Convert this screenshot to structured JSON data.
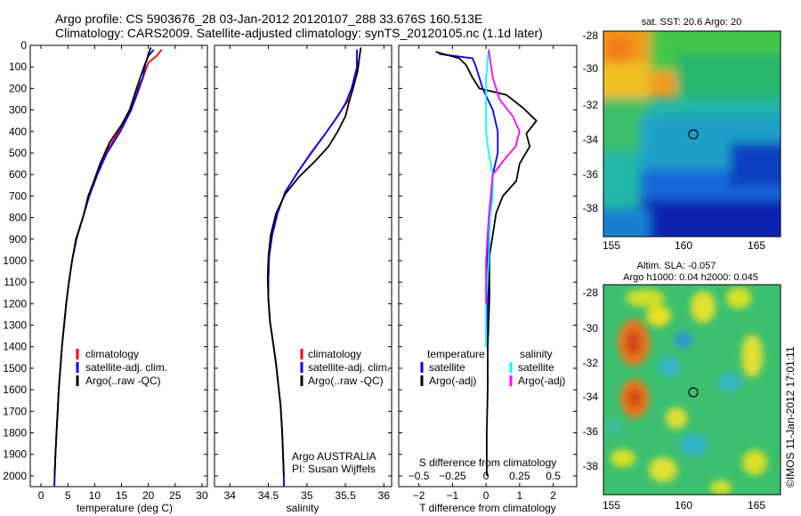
{
  "header": {
    "line1": "Argo profile: CS 5903676_28 03-Jan-2012 20120107_288 33.676S 160.513E",
    "line2": "Climatology: CARS2009. Satellite-adjusted climatology: synTS_20120105.nc (1.1d later)"
  },
  "credit": "©IMOS 11-Jan-2012 17:01:11",
  "colors": {
    "climatology": "#ff0000",
    "satellite": "#0000ff",
    "argo": "#000000",
    "sat_salinity": "#00ffff",
    "argo_salinity": "#ff00ff"
  },
  "chart_data": [
    {
      "type": "line",
      "id": "temperature",
      "xlabel": "temperature (deg C)",
      "ylim": [
        0,
        2050
      ],
      "y_inverted": true,
      "xlim": [
        -2,
        31
      ],
      "xticks": [
        0,
        5,
        10,
        15,
        20,
        25,
        30
      ],
      "yticks": [
        0,
        100,
        200,
        300,
        400,
        500,
        600,
        700,
        800,
        900,
        1000,
        1100,
        1200,
        1300,
        1400,
        1500,
        1600,
        1700,
        1800,
        1900,
        2000
      ],
      "legend": [
        "climatology",
        "satellite-adj. clim.",
        "Argo(..raw -QC)"
      ],
      "series": [
        {
          "name": "climatology",
          "color": "#ff0000",
          "points": [
            [
              22.5,
              20
            ],
            [
              21.5,
              50
            ],
            [
              20,
              80
            ],
            [
              19,
              150
            ],
            [
              18,
              200
            ],
            [
              16.5,
              300
            ],
            [
              14.5,
              400
            ],
            [
              12,
              500
            ],
            [
              10.5,
              600
            ],
            [
              9,
              700
            ],
            [
              7.8,
              800
            ],
            [
              6.5,
              900
            ],
            [
              5.8,
              1000
            ],
            [
              5.2,
              1100
            ],
            [
              4.7,
              1200
            ],
            [
              4.3,
              1300
            ],
            [
              3.9,
              1400
            ],
            [
              3.6,
              1500
            ],
            [
              3.3,
              1600
            ],
            [
              3.1,
              1700
            ],
            [
              2.9,
              1800
            ],
            [
              2.7,
              1900
            ],
            [
              2.55,
              2000
            ],
            [
              2.5,
              2050
            ]
          ]
        },
        {
          "name": "satellite-adj. clim.",
          "color": "#0000ff",
          "points": [
            [
              21,
              20
            ],
            [
              20,
              50
            ],
            [
              19.5,
              80
            ],
            [
              19,
              150
            ],
            [
              18.3,
              200
            ],
            [
              16.8,
              300
            ],
            [
              14.8,
              400
            ],
            [
              12.3,
              500
            ],
            [
              10.5,
              600
            ],
            [
              9,
              700
            ],
            [
              7.8,
              800
            ],
            [
              6.5,
              900
            ],
            [
              5.8,
              1000
            ],
            [
              5.2,
              1100
            ],
            [
              4.7,
              1200
            ],
            [
              4.3,
              1300
            ],
            [
              3.9,
              1400
            ],
            [
              3.6,
              1500
            ],
            [
              3.3,
              1600
            ],
            [
              3.1,
              1700
            ],
            [
              2.9,
              1800
            ],
            [
              2.7,
              1900
            ],
            [
              2.55,
              2000
            ],
            [
              2.5,
              2050
            ]
          ]
        },
        {
          "name": "Argo(..raw -QC)",
          "color": "#000000",
          "points": [
            [
              20.5,
              10
            ],
            [
              20,
              40
            ],
            [
              19.8,
              60
            ],
            [
              19.2,
              100
            ],
            [
              18.5,
              150
            ],
            [
              17.8,
              200
            ],
            [
              16.5,
              300
            ],
            [
              15,
              370
            ],
            [
              12.8,
              450
            ],
            [
              11,
              550
            ],
            [
              10,
              620
            ],
            [
              8.8,
              700
            ],
            [
              7.8,
              800
            ],
            [
              6.6,
              900
            ],
            [
              5.8,
              1000
            ],
            [
              5.2,
              1100
            ],
            [
              4.7,
              1200
            ],
            [
              4.3,
              1300
            ],
            [
              3.9,
              1400
            ],
            [
              3.6,
              1500
            ],
            [
              3.3,
              1600
            ],
            [
              3.1,
              1700
            ],
            [
              2.9,
              1800
            ],
            [
              2.7,
              1900
            ],
            [
              2.55,
              2000
            ]
          ]
        }
      ]
    },
    {
      "type": "line",
      "id": "salinity",
      "xlabel": "salinity",
      "ylim": [
        0,
        2050
      ],
      "y_inverted": true,
      "xlim": [
        33.8,
        36.1
      ],
      "xticks": [
        34,
        34.5,
        35,
        35.5,
        36
      ],
      "legend": [
        "climatology",
        "satellite-adj. clim.",
        "Argo(..raw -QC)"
      ],
      "annotations": [
        "Argo AUSTRALIA",
        "PI: Susan Wijffels"
      ],
      "series": [
        {
          "name": "climatology",
          "color": "#ff0000",
          "points": [
            [
              35.65,
              20
            ],
            [
              35.65,
              100
            ],
            [
              35.6,
              200
            ],
            [
              35.55,
              250
            ],
            [
              35.45,
              300
            ],
            [
              35.3,
              380
            ],
            [
              35.1,
              480
            ],
            [
              34.9,
              580
            ],
            [
              34.72,
              680
            ],
            [
              34.62,
              780
            ],
            [
              34.55,
              880
            ],
            [
              34.51,
              980
            ],
            [
              34.5,
              1080
            ],
            [
              34.5,
              1180
            ],
            [
              34.52,
              1280
            ],
            [
              34.56,
              1380
            ],
            [
              34.6,
              1480
            ],
            [
              34.63,
              1580
            ],
            [
              34.66,
              1680
            ],
            [
              34.68,
              1800
            ],
            [
              34.69,
              1900
            ],
            [
              34.7,
              2000
            ],
            [
              34.7,
              2050
            ]
          ]
        },
        {
          "name": "satellite-adj. clim.",
          "color": "#0000ff",
          "points": [
            [
              35.65,
              20
            ],
            [
              35.65,
              100
            ],
            [
              35.58,
              200
            ],
            [
              35.5,
              270
            ],
            [
              35.4,
              330
            ],
            [
              35.22,
              420
            ],
            [
              35.05,
              500
            ],
            [
              34.88,
              590
            ],
            [
              34.72,
              680
            ],
            [
              34.62,
              780
            ],
            [
              34.55,
              880
            ],
            [
              34.51,
              980
            ],
            [
              34.5,
              1080
            ],
            [
              34.5,
              1180
            ],
            [
              34.52,
              1280
            ],
            [
              34.56,
              1380
            ],
            [
              34.6,
              1480
            ],
            [
              34.63,
              1580
            ],
            [
              34.66,
              1680
            ],
            [
              34.68,
              1800
            ],
            [
              34.69,
              1900
            ],
            [
              34.7,
              2000
            ],
            [
              34.7,
              2050
            ]
          ]
        },
        {
          "name": "Argo(..raw -QC)",
          "color": "#000000",
          "points": [
            [
              35.7,
              10
            ],
            [
              35.68,
              60
            ],
            [
              35.66,
              120
            ],
            [
              35.6,
              200
            ],
            [
              35.55,
              260
            ],
            [
              35.5,
              330
            ],
            [
              35.4,
              400
            ],
            [
              35.28,
              470
            ],
            [
              35.1,
              540
            ],
            [
              34.9,
              610
            ],
            [
              34.72,
              690
            ],
            [
              34.6,
              780
            ],
            [
              34.53,
              880
            ],
            [
              34.5,
              980
            ],
            [
              34.49,
              1080
            ],
            [
              34.5,
              1180
            ],
            [
              34.52,
              1280
            ],
            [
              34.56,
              1380
            ],
            [
              34.6,
              1480
            ],
            [
              34.63,
              1580
            ],
            [
              34.66,
              1680
            ],
            [
              34.68,
              1800
            ],
            [
              34.69,
              1900
            ],
            [
              34.7,
              2000
            ]
          ]
        }
      ]
    },
    {
      "type": "line",
      "id": "differences",
      "xlabel": "T difference from climatology",
      "top_axis_label": "S difference from climatology",
      "ylim": [
        0,
        2050
      ],
      "y_inverted": true,
      "xlim_T": [
        -2.6,
        2.7
      ],
      "xticks_T": [
        -2,
        -1,
        0,
        1,
        2
      ],
      "xlim_S": [
        -0.65,
        0.675
      ],
      "xticks_S": [
        "-0.5",
        "-0.25",
        "0",
        "0.25",
        "0.5"
      ],
      "legend": {
        "temperature_header": "temperature",
        "salinity_header": "salinity",
        "temperature_items": [
          "satellite",
          "Argo(-adj)"
        ],
        "salinity_items": [
          "satellite",
          "Argo(-adj)"
        ]
      },
      "series": [
        {
          "name": "T satellite",
          "color": "#0000ff",
          "points": [
            [
              -1.4,
              40
            ],
            [
              -0.4,
              60
            ],
            [
              -0.3,
              100
            ],
            [
              -0.2,
              150
            ],
            [
              -0.1,
              200
            ],
            [
              0.2,
              300
            ],
            [
              0.35,
              400
            ],
            [
              0.35,
              500
            ],
            [
              0.2,
              600
            ],
            [
              0.15,
              700
            ],
            [
              0.1,
              800
            ],
            [
              0.05,
              900
            ],
            [
              0.05,
              1000
            ],
            [
              0.05,
              1100
            ],
            [
              0.05,
              1200
            ],
            [
              0.03,
              1300
            ],
            [
              0.02,
              1400
            ]
          ]
        },
        {
          "name": "T Argo(-adj)",
          "color": "#000000",
          "points": [
            [
              -1.5,
              30
            ],
            [
              -0.8,
              60
            ],
            [
              -0.6,
              90
            ],
            [
              -0.4,
              150
            ],
            [
              -0.2,
              200
            ],
            [
              0.6,
              230
            ],
            [
              1.1,
              290
            ],
            [
              1.5,
              350
            ],
            [
              1.2,
              410
            ],
            [
              1.3,
              470
            ],
            [
              1.0,
              550
            ],
            [
              0.9,
              630
            ],
            [
              0.5,
              700
            ],
            [
              0.3,
              780
            ],
            [
              0.2,
              880
            ],
            [
              0.1,
              980
            ],
            [
              0.1,
              1080
            ],
            [
              0.1,
              1180
            ],
            [
              0.08,
              1280
            ],
            [
              0.05,
              1400
            ],
            [
              0.05,
              1600
            ],
            [
              0.02,
              1800
            ],
            [
              0.02,
              2000
            ]
          ]
        },
        {
          "name": "S satellite",
          "color": "#00ffff",
          "points": [
            [
              0.02,
              20
            ],
            [
              0,
              150
            ],
            [
              0,
              300
            ],
            [
              0,
              400
            ],
            [
              0.02,
              500
            ],
            [
              0.05,
              600
            ],
            [
              0.05,
              700
            ],
            [
              0.03,
              800
            ],
            [
              0.02,
              1000
            ],
            [
              0,
              1200
            ],
            [
              0,
              1400
            ]
          ]
        },
        {
          "name": "S Argo(-adj)",
          "color": "#ff00ff",
          "points": [
            [
              0.02,
              20
            ],
            [
              0.05,
              150
            ],
            [
              0.1,
              250
            ],
            [
              0.2,
              330
            ],
            [
              0.25,
              400
            ],
            [
              0.22,
              470
            ],
            [
              0.15,
              520
            ],
            [
              0.05,
              600
            ],
            [
              0.02,
              800
            ],
            [
              0,
              1000
            ],
            [
              0,
              1200
            ]
          ]
        }
      ]
    }
  ],
  "maps": [
    {
      "id": "sst",
      "title": "sat. SST: 20.6 Argo: 20",
      "xticks": [
        "155",
        "160",
        "165"
      ],
      "yticks": [
        "-28",
        "-30",
        "-32",
        "-34",
        "-36",
        "-38"
      ]
    },
    {
      "id": "sla",
      "title_line1": "Altim. SLA: -0.057",
      "title_line2": "Argo h1000: 0.04 h2000: 0.045",
      "xticks": [
        "155",
        "160",
        "165"
      ],
      "yticks": [
        "-28",
        "-30",
        "-32",
        "-34",
        "-36",
        "-38"
      ]
    }
  ]
}
